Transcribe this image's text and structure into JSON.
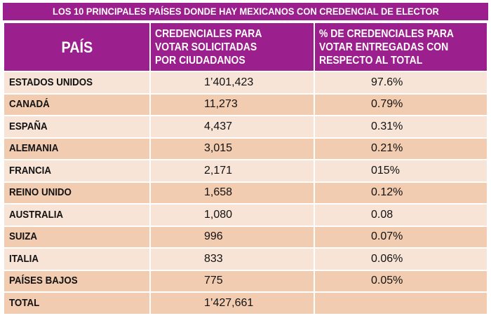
{
  "chart_data": {
    "type": "table",
    "title": "LOS 10 PRINCIPALES PAÍSES DONDE HAY MEXICANOS CON CREDENCIAL DE ELECTOR",
    "columns": [
      "PAÍS",
      "CREDENCIALES PARA VOTAR SOLICITADAS POR CIUDADANOS",
      "% DE CREDENCIALES PARA VOTAR ENTREGADAS CON RESPECTO AL TOTAL"
    ],
    "header_lines": {
      "col2": [
        "CREDENCIALES PARA",
        "VOTAR SOLICITADAS",
        "POR CIUDADANOS"
      ],
      "col3": [
        "% DE CREDENCIALES PARA",
        "VOTAR ENTREGADAS CON",
        "RESPECTO AL TOTAL"
      ]
    },
    "rows": [
      {
        "country": "ESTADOS UNIDOS",
        "credentials": "1’401,423",
        "percent": "97.6%"
      },
      {
        "country": "CANADÁ",
        "credentials": "11,273",
        "percent": "0.79%"
      },
      {
        "country": "ESPAÑA",
        "credentials": "4,437",
        "percent": "0.31%"
      },
      {
        "country": "ALEMANIA",
        "credentials": "3,015",
        "percent": "0.21%"
      },
      {
        "country": "FRANCIA",
        "credentials": "2,171",
        "percent": "015%"
      },
      {
        "country": "REINO UNIDO",
        "credentials": "1,658",
        "percent": "0.12%"
      },
      {
        "country": "AUSTRALIA",
        "credentials": "1,080",
        "percent": "0.08"
      },
      {
        "country": "SUIZA",
        "credentials": "996",
        "percent": "0.07%"
      },
      {
        "country": "ITALIA",
        "credentials": "833",
        "percent": "0.06%"
      },
      {
        "country": "PAÍSES BAJOS",
        "credentials": "775",
        "percent": "0.05%"
      }
    ],
    "total": {
      "label": "TOTAL",
      "credentials": "1’427,661",
      "percent": ""
    },
    "colors": {
      "header": "#9b1f8c",
      "row_light": "#f7e4d7",
      "row_dark": "#f2ccb0"
    }
  }
}
